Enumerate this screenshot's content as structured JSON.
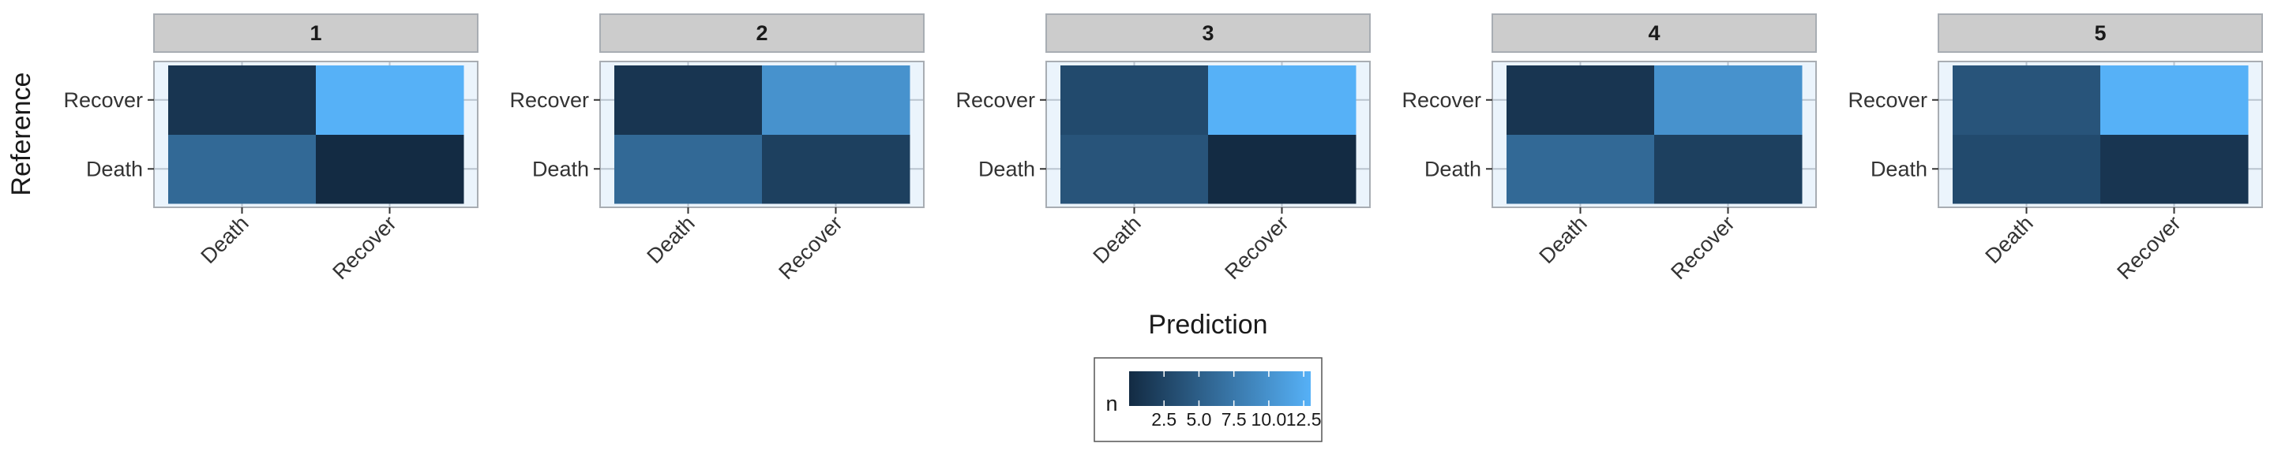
{
  "chart_data": {
    "type": "heatmap",
    "title": "",
    "xlabel": "Prediction",
    "ylabel": "Reference",
    "x_categories": [
      "Death",
      "Recover"
    ],
    "y_categories": [
      "Death",
      "Recover"
    ],
    "facets": [
      {
        "label": "1",
        "cells": [
          {
            "x": "Death",
            "y": "Death",
            "n": 6
          },
          {
            "x": "Recover",
            "y": "Death",
            "n": 0
          },
          {
            "x": "Death",
            "y": "Recover",
            "n": 1
          },
          {
            "x": "Recover",
            "y": "Recover",
            "n": 13
          }
        ]
      },
      {
        "label": "2",
        "cells": [
          {
            "x": "Death",
            "y": "Death",
            "n": 6
          },
          {
            "x": "Recover",
            "y": "Death",
            "n": 2
          },
          {
            "x": "Death",
            "y": "Recover",
            "n": 1
          },
          {
            "x": "Recover",
            "y": "Recover",
            "n": 10
          }
        ]
      },
      {
        "label": "3",
        "cells": [
          {
            "x": "Death",
            "y": "Death",
            "n": 4
          },
          {
            "x": "Recover",
            "y": "Death",
            "n": 0
          },
          {
            "x": "Death",
            "y": "Recover",
            "n": 3
          },
          {
            "x": "Recover",
            "y": "Recover",
            "n": 13
          }
        ]
      },
      {
        "label": "4",
        "cells": [
          {
            "x": "Death",
            "y": "Death",
            "n": 6
          },
          {
            "x": "Recover",
            "y": "Death",
            "n": 2
          },
          {
            "x": "Death",
            "y": "Recover",
            "n": 1
          },
          {
            "x": "Recover",
            "y": "Recover",
            "n": 10
          }
        ]
      },
      {
        "label": "5",
        "cells": [
          {
            "x": "Death",
            "y": "Death",
            "n": 3
          },
          {
            "x": "Recover",
            "y": "Death",
            "n": 1
          },
          {
            "x": "Death",
            "y": "Recover",
            "n": 4
          },
          {
            "x": "Recover",
            "y": "Recover",
            "n": 13
          }
        ]
      }
    ],
    "legend": {
      "title": "n",
      "position": "bottom",
      "range": [
        0,
        13
      ],
      "ticks": [
        2.5,
        5.0,
        7.5,
        10.0,
        12.5
      ],
      "tick_labels": [
        "2.5",
        "5.0",
        "7.5",
        "10.0",
        "12.5"
      ],
      "low_color": "#132B43",
      "high_color": "#56B1F7"
    },
    "grid": true,
    "panel_background": "#EBF4FC",
    "strip_background": "#CCCCCC",
    "border_color": "#A8ADB3"
  }
}
